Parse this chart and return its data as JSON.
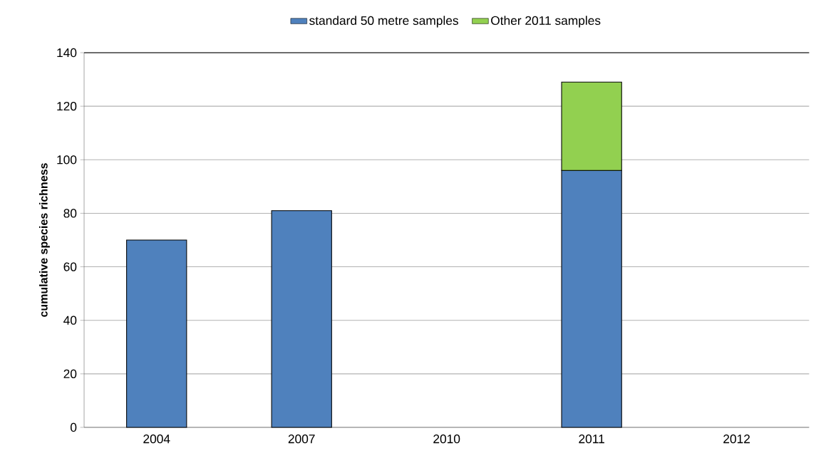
{
  "chart_data": {
    "type": "bar",
    "stacked": true,
    "ylabel": "cumulative species richness",
    "categories": [
      "2004",
      "2007",
      "2010",
      "2011",
      "2012"
    ],
    "series": [
      {
        "name": "standard 50 metre samples",
        "color": "#4f81bd",
        "values": [
          70,
          81,
          null,
          96,
          null
        ]
      },
      {
        "name": "Other 2011 samples",
        "color": "#92d050",
        "values": [
          null,
          null,
          null,
          33,
          null
        ]
      }
    ],
    "ylim": [
      0,
      140
    ],
    "yticks": [
      0,
      20,
      40,
      60,
      80,
      100,
      120,
      140
    ],
    "grid": "y",
    "legend": "top"
  }
}
